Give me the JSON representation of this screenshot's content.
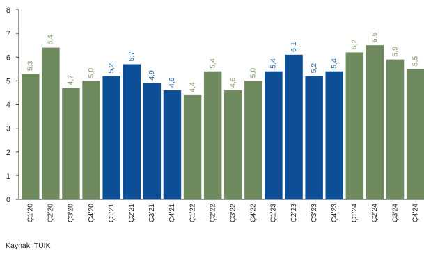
{
  "chart_data": {
    "type": "bar",
    "categories": [
      "Ç1'20",
      "Ç2'20",
      "Ç3'20",
      "Ç4'20",
      "Ç1'21",
      "Ç2'21",
      "Ç3'21",
      "Ç4'21",
      "Ç1'22",
      "Ç2'22",
      "Ç3'22",
      "Ç4'22",
      "Ç1'23",
      "Ç2'23",
      "Ç3'23",
      "Ç4'23",
      "Ç1'24",
      "Ç2'24",
      "Ç3'24",
      "Ç4'24"
    ],
    "values": [
      5.3,
      6.4,
      4.7,
      5.0,
      5.2,
      5.7,
      4.9,
      4.6,
      4.4,
      5.4,
      4.6,
      5.0,
      5.4,
      6.1,
      5.2,
      5.4,
      6.2,
      6.5,
      5.9,
      5.5
    ],
    "value_labels": [
      "5,3",
      "6,4",
      "4,7",
      "5,0",
      "5,2",
      "5,7",
      "4,9",
      "4,6",
      "4,4",
      "5,4",
      "4,6",
      "5,0",
      "5,4",
      "6,1",
      "5,2",
      "5,4",
      "6,2",
      "6,5",
      "5,9",
      "5,5"
    ],
    "bar_colors": [
      "#6e8a5e",
      "#6e8a5e",
      "#6e8a5e",
      "#6e8a5e",
      "#0d4f96",
      "#0d4f96",
      "#0d4f96",
      "#0d4f96",
      "#6e8a5e",
      "#6e8a5e",
      "#6e8a5e",
      "#6e8a5e",
      "#0d4f96",
      "#0d4f96",
      "#0d4f96",
      "#0d4f96",
      "#6e8a5e",
      "#6e8a5e",
      "#6e8a5e",
      "#6e8a5e"
    ],
    "label_colors": [
      "#7d9a64",
      "#7d9a64",
      "#7d9a64",
      "#7d9a64",
      "#1f62b0",
      "#1f62b0",
      "#1f62b0",
      "#1f62b0",
      "#7d9a64",
      "#7d9a64",
      "#7d9a64",
      "#7d9a64",
      "#1f62b0",
      "#1f62b0",
      "#1f62b0",
      "#1f62b0",
      "#7d9a64",
      "#7d9a64",
      "#7d9a64",
      "#7d9a64"
    ],
    "yticks": [
      0,
      1,
      2,
      3,
      4,
      5,
      6,
      7,
      8
    ],
    "ylim": [
      0,
      8
    ],
    "grid": false,
    "source": "Kaynak: TÜİK"
  }
}
